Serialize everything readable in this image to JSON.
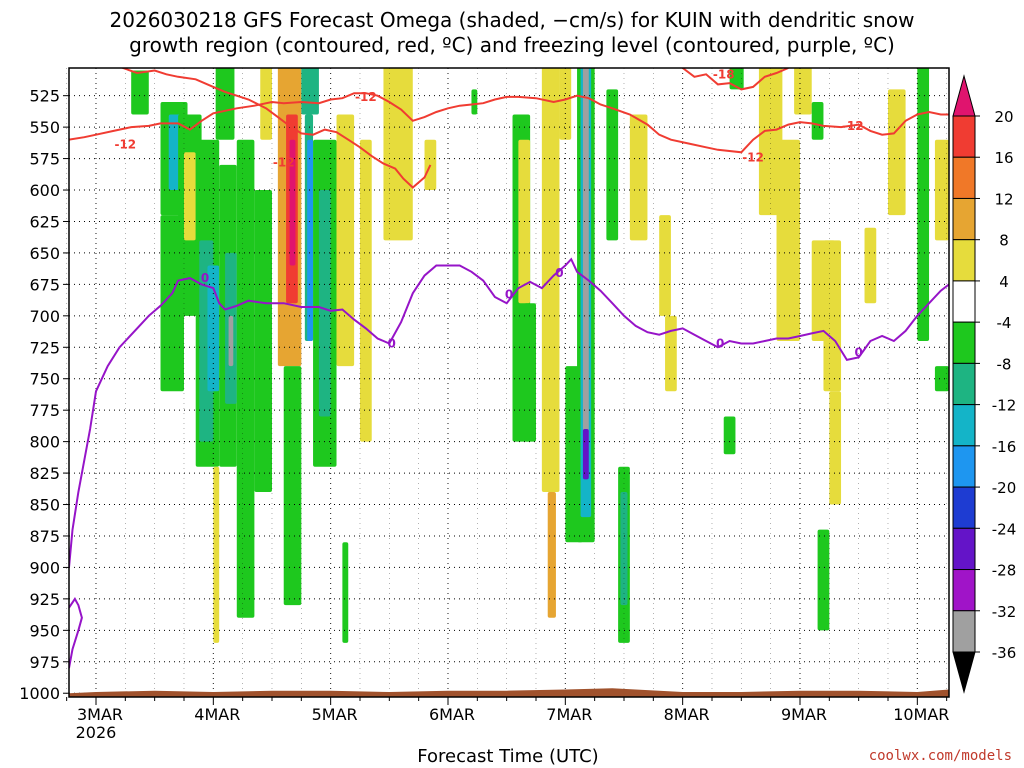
{
  "title_line1": "2026030218 GFS Forecast Omega (shaded, −cm/s) for KUIN with dendritic snow",
  "title_line2": "growth region (contoured, red, ºC) and freezing level (contoured, purple, ºC)",
  "credit": "coolwx.com/models",
  "chart_data": {
    "type": "heatmap",
    "title": "2026030218 GFS Forecast Omega (shaded, −cm/s) for KUIN with dendritic snow growth region (contoured, red, ºC) and freezing level (contoured, purple, ºC)",
    "xlabel": "Forecast Time (UTC)",
    "ylabel": "",
    "y_axis": {
      "reversed": true,
      "ylim": [
        1003,
        503
      ],
      "ticks": [
        525,
        550,
        575,
        600,
        625,
        650,
        675,
        700,
        725,
        750,
        775,
        800,
        825,
        850,
        875,
        900,
        925,
        950,
        975,
        1000
      ]
    },
    "x_axis": {
      "xlim": [
        -0.23,
        7.27
      ],
      "ticks": [
        {
          "label": "3MAR",
          "sub": "2026",
          "day": 0
        },
        {
          "label": "4MAR",
          "day": 1
        },
        {
          "label": "5MAR",
          "day": 2
        },
        {
          "label": "6MAR",
          "day": 3
        },
        {
          "label": "7MAR",
          "day": 4
        },
        {
          "label": "8MAR",
          "day": 5
        },
        {
          "label": "9MAR",
          "day": 6
        },
        {
          "label": "10MAR",
          "day": 7
        }
      ]
    },
    "grid": true,
    "colorbar": {
      "ticks": [
        "20",
        "16",
        "12",
        "8",
        "4",
        "-4",
        "-8",
        "-12",
        "-16",
        "-20",
        "-24",
        "-28",
        "-32",
        "-36"
      ],
      "colors": [
        "#e0146e",
        "#f03c32",
        "#f07828",
        "#e6a532",
        "#e6dc3c",
        "#ffffff",
        "#1ec81e",
        "#1eb482",
        "#14b4c8",
        "#1e96f0",
        "#1e3cd2",
        "#6414c8",
        "#a014c8",
        "#a0a0a0",
        "#000000"
      ]
    },
    "terrain_color": "#a0522d",
    "dendritic_color": "#f03c32",
    "freezing_color": "#9614c8",
    "dendritic_labels": [
      "-12",
      "-12",
      "-12",
      "-12",
      "-12",
      "-18"
    ],
    "freezing_labels": [
      "0",
      "0",
      "0",
      "0",
      "0",
      "0"
    ],
    "dendritic_contour_upper": [
      [
        -0.23,
        560
      ],
      [
        -0.1,
        558
      ],
      [
        0.0,
        556
      ],
      [
        0.15,
        553
      ],
      [
        0.3,
        550
      ],
      [
        0.45,
        549
      ],
      [
        0.55,
        547
      ],
      [
        0.7,
        547
      ],
      [
        0.8,
        552
      ],
      [
        0.9,
        545
      ],
      [
        1.0,
        539
      ],
      [
        1.1,
        537
      ],
      [
        1.2,
        535
      ],
      [
        1.35,
        533
      ],
      [
        1.5,
        530
      ],
      [
        1.6,
        531
      ],
      [
        1.75,
        530
      ],
      [
        1.9,
        531
      ],
      [
        2.0,
        528
      ],
      [
        2.1,
        527
      ],
      [
        2.2,
        523
      ],
      [
        2.3,
        523
      ],
      [
        2.4,
        525
      ],
      [
        2.5,
        530
      ],
      [
        2.6,
        536
      ],
      [
        2.7,
        545
      ],
      [
        2.8,
        542
      ],
      [
        2.9,
        538
      ],
      [
        3.0,
        535
      ],
      [
        3.1,
        533
      ],
      [
        3.2,
        532
      ],
      [
        3.3,
        531
      ],
      [
        3.4,
        528
      ],
      [
        3.5,
        526
      ],
      [
        3.6,
        526
      ],
      [
        3.75,
        527
      ],
      [
        3.9,
        530
      ],
      [
        4.0,
        528
      ],
      [
        4.1,
        525
      ],
      [
        4.2,
        527
      ],
      [
        4.3,
        532
      ],
      [
        4.4,
        535
      ],
      [
        4.55,
        540
      ],
      [
        4.7,
        548
      ],
      [
        4.8,
        556
      ],
      [
        4.9,
        560
      ],
      [
        5.05,
        563
      ],
      [
        5.2,
        566
      ],
      [
        5.3,
        568
      ],
      [
        5.5,
        570
      ],
      [
        5.6,
        560
      ],
      [
        5.7,
        553
      ],
      [
        5.8,
        552
      ],
      [
        5.9,
        548
      ],
      [
        6.0,
        546
      ],
      [
        6.1,
        547
      ],
      [
        6.2,
        549
      ],
      [
        6.35,
        550
      ],
      [
        6.5,
        548
      ],
      [
        6.6,
        553
      ],
      [
        6.7,
        556
      ],
      [
        6.8,
        555
      ],
      [
        6.9,
        545
      ],
      [
        7.0,
        540
      ],
      [
        7.1,
        538
      ],
      [
        7.2,
        540
      ],
      [
        7.27,
        540
      ]
    ],
    "dendritic_contour_lower": [
      [
        0.2,
        502
      ],
      [
        0.35,
        507
      ],
      [
        0.5,
        505
      ],
      [
        0.6,
        508
      ],
      [
        0.7,
        510
      ],
      [
        0.85,
        512
      ],
      [
        1.0,
        518
      ],
      [
        1.1,
        522
      ],
      [
        1.2,
        525
      ],
      [
        1.3,
        528
      ],
      [
        1.45,
        535
      ],
      [
        1.55,
        542
      ],
      [
        1.65,
        549
      ],
      [
        1.75,
        555
      ],
      [
        1.85,
        556
      ],
      [
        1.95,
        552
      ],
      [
        2.05,
        554
      ],
      [
        2.15,
        560
      ],
      [
        2.25,
        566
      ],
      [
        2.35,
        573
      ],
      [
        2.45,
        579
      ],
      [
        2.55,
        583
      ],
      [
        2.62,
        591
      ],
      [
        2.7,
        598
      ],
      [
        2.8,
        590
      ],
      [
        2.85,
        580
      ]
    ],
    "dendritic_contour_top18": [
      [
        5.0,
        503
      ],
      [
        5.1,
        510
      ],
      [
        5.2,
        508
      ],
      [
        5.3,
        516
      ],
      [
        5.4,
        515
      ],
      [
        5.5,
        520
      ],
      [
        5.6,
        518
      ],
      [
        5.7,
        510
      ],
      [
        5.8,
        507
      ],
      [
        5.9,
        503
      ]
    ],
    "freezing_contour": [
      [
        -0.23,
        900
      ],
      [
        -0.2,
        870
      ],
      [
        -0.15,
        840
      ],
      [
        -0.05,
        790
      ],
      [
        0.0,
        760
      ],
      [
        0.1,
        740
      ],
      [
        0.2,
        725
      ],
      [
        0.35,
        710
      ],
      [
        0.45,
        700
      ],
      [
        0.55,
        692
      ],
      [
        0.65,
        682
      ],
      [
        0.7,
        672
      ],
      [
        0.8,
        670
      ],
      [
        0.9,
        675
      ],
      [
        1.0,
        678
      ],
      [
        1.05,
        690
      ],
      [
        1.1,
        695
      ],
      [
        1.2,
        692
      ],
      [
        1.3,
        688
      ],
      [
        1.45,
        690
      ],
      [
        1.6,
        690
      ],
      [
        1.75,
        693
      ],
      [
        1.9,
        693
      ],
      [
        2.0,
        696
      ],
      [
        2.1,
        695
      ],
      [
        2.2,
        703
      ],
      [
        2.3,
        710
      ],
      [
        2.4,
        718
      ],
      [
        2.5,
        722
      ],
      [
        2.6,
        705
      ],
      [
        2.7,
        682
      ],
      [
        2.8,
        668
      ],
      [
        2.9,
        660
      ],
      [
        3.0,
        660
      ],
      [
        3.1,
        660
      ],
      [
        3.2,
        665
      ],
      [
        3.3,
        672
      ],
      [
        3.4,
        685
      ],
      [
        3.5,
        690
      ],
      [
        3.6,
        678
      ],
      [
        3.7,
        673
      ],
      [
        3.8,
        678
      ],
      [
        3.9,
        668
      ],
      [
        4.0,
        660
      ],
      [
        4.05,
        655
      ],
      [
        4.1,
        665
      ],
      [
        4.2,
        672
      ],
      [
        4.3,
        680
      ],
      [
        4.4,
        690
      ],
      [
        4.5,
        700
      ],
      [
        4.6,
        708
      ],
      [
        4.7,
        713
      ],
      [
        4.8,
        715
      ],
      [
        4.9,
        712
      ],
      [
        5.0,
        710
      ],
      [
        5.1,
        715
      ],
      [
        5.2,
        720
      ],
      [
        5.3,
        725
      ],
      [
        5.4,
        720
      ],
      [
        5.5,
        722
      ],
      [
        5.6,
        722
      ],
      [
        5.7,
        720
      ],
      [
        5.8,
        718
      ],
      [
        5.9,
        718
      ],
      [
        6.0,
        716
      ],
      [
        6.1,
        714
      ],
      [
        6.2,
        712
      ],
      [
        6.3,
        720
      ],
      [
        6.4,
        735
      ],
      [
        6.5,
        733
      ],
      [
        6.6,
        720
      ],
      [
        6.7,
        716
      ],
      [
        6.8,
        720
      ],
      [
        6.9,
        712
      ],
      [
        7.0,
        700
      ],
      [
        7.1,
        690
      ],
      [
        7.2,
        680
      ],
      [
        7.27,
        675
      ]
    ],
    "freezing_contour_lower": [
      [
        -0.23,
        980
      ],
      [
        -0.2,
        965
      ],
      [
        -0.15,
        950
      ],
      [
        -0.12,
        940
      ],
      [
        -0.15,
        930
      ],
      [
        -0.18,
        925
      ],
      [
        -0.23,
        932
      ]
    ],
    "omega_cells": [
      {
        "x0": 0.3,
        "x1": 0.45,
        "y0": 505,
        "y1": 540,
        "v": -8
      },
      {
        "x0": 0.55,
        "x1": 0.78,
        "y0": 530,
        "y1": 620,
        "v": -8
      },
      {
        "x0": 0.55,
        "x1": 0.75,
        "y0": 620,
        "y1": 760,
        "v": -8
      },
      {
        "x0": 0.62,
        "x1": 0.72,
        "y0": 540,
        "y1": 600,
        "v": -16
      },
      {
        "x0": 0.7,
        "x1": 0.9,
        "y0": 540,
        "y1": 700,
        "v": -8
      },
      {
        "x0": 0.75,
        "x1": 0.85,
        "y0": 570,
        "y1": 640,
        "v": 6
      },
      {
        "x0": 0.85,
        "x1": 1.05,
        "y0": 560,
        "y1": 820,
        "v": -8
      },
      {
        "x0": 0.88,
        "x1": 1.0,
        "y0": 640,
        "y1": 800,
        "v": -12
      },
      {
        "x0": 0.95,
        "x1": 1.05,
        "y0": 660,
        "y1": 760,
        "v": -16
      },
      {
        "x0": 1.02,
        "x1": 1.18,
        "y0": 500,
        "y1": 560,
        "v": -8
      },
      {
        "x0": 1.05,
        "x1": 1.2,
        "y0": 580,
        "y1": 820,
        "v": -8
      },
      {
        "x0": 1.1,
        "x1": 1.2,
        "y0": 650,
        "y1": 770,
        "v": -12
      },
      {
        "x0": 1.13,
        "x1": 1.17,
        "y0": 700,
        "y1": 740,
        "v": -36
      },
      {
        "x0": 1.0,
        "x1": 1.05,
        "y0": 820,
        "y1": 960,
        "v": 6
      },
      {
        "x0": 1.2,
        "x1": 1.35,
        "y0": 560,
        "y1": 940,
        "v": -8
      },
      {
        "x0": 1.35,
        "x1": 1.5,
        "y0": 600,
        "y1": 840,
        "v": -8
      },
      {
        "x0": 1.4,
        "x1": 1.5,
        "y0": 500,
        "y1": 560,
        "v": 6
      },
      {
        "x0": 1.55,
        "x1": 1.75,
        "y0": 500,
        "y1": 740,
        "v": 10
      },
      {
        "x0": 1.62,
        "x1": 1.72,
        "y0": 540,
        "y1": 690,
        "v": 16
      },
      {
        "x0": 1.65,
        "x1": 1.7,
        "y0": 560,
        "y1": 660,
        "v": 20
      },
      {
        "x0": 1.6,
        "x1": 1.75,
        "y0": 740,
        "y1": 930,
        "v": -8
      },
      {
        "x0": 1.75,
        "x1": 1.9,
        "y0": 500,
        "y1": 540,
        "v": -12
      },
      {
        "x0": 1.78,
        "x1": 1.85,
        "y0": 540,
        "y1": 720,
        "v": -12
      },
      {
        "x0": 1.8,
        "x1": 1.85,
        "y0": 560,
        "y1": 720,
        "v": -20
      },
      {
        "x0": 1.85,
        "x1": 2.05,
        "y0": 560,
        "y1": 820,
        "v": -8
      },
      {
        "x0": 1.9,
        "x1": 2.0,
        "y0": 600,
        "y1": 780,
        "v": -12
      },
      {
        "x0": 2.05,
        "x1": 2.2,
        "y0": 540,
        "y1": 740,
        "v": 6
      },
      {
        "x0": 2.1,
        "x1": 2.15,
        "y0": 880,
        "y1": 960,
        "v": -8
      },
      {
        "x0": 2.25,
        "x1": 2.35,
        "y0": 560,
        "y1": 800,
        "v": 6
      },
      {
        "x0": 2.45,
        "x1": 2.7,
        "y0": 500,
        "y1": 640,
        "v": 6
      },
      {
        "x0": 2.8,
        "x1": 2.9,
        "y0": 560,
        "y1": 600,
        "v": 6
      },
      {
        "x0": 3.2,
        "x1": 3.25,
        "y0": 520,
        "y1": 540,
        "v": -8
      },
      {
        "x0": 3.55,
        "x1": 3.7,
        "y0": 540,
        "y1": 800,
        "v": -8
      },
      {
        "x0": 3.6,
        "x1": 3.7,
        "y0": 560,
        "y1": 690,
        "v": 6
      },
      {
        "x0": 3.65,
        "x1": 3.75,
        "y0": 690,
        "y1": 800,
        "v": -8
      },
      {
        "x0": 3.8,
        "x1": 3.95,
        "y0": 500,
        "y1": 840,
        "v": 6
      },
      {
        "x0": 3.85,
        "x1": 3.92,
        "y0": 840,
        "y1": 940,
        "v": 10
      },
      {
        "x0": 3.95,
        "x1": 4.05,
        "y0": 500,
        "y1": 560,
        "v": 6
      },
      {
        "x0": 4.0,
        "x1": 4.15,
        "y0": 740,
        "y1": 880,
        "v": -8
      },
      {
        "x0": 4.1,
        "x1": 4.25,
        "y0": 500,
        "y1": 880,
        "v": -8
      },
      {
        "x0": 4.13,
        "x1": 4.22,
        "y0": 500,
        "y1": 860,
        "v": -16
      },
      {
        "x0": 4.15,
        "x1": 4.2,
        "y0": 500,
        "y1": 800,
        "v": -36
      },
      {
        "x0": 4.15,
        "x1": 4.2,
        "y0": 790,
        "y1": 830,
        "v": -28
      },
      {
        "x0": 4.35,
        "x1": 4.45,
        "y0": 520,
        "y1": 640,
        "v": -8
      },
      {
        "x0": 4.45,
        "x1": 4.55,
        "y0": 820,
        "y1": 960,
        "v": -8
      },
      {
        "x0": 4.47,
        "x1": 4.53,
        "y0": 840,
        "y1": 930,
        "v": -12
      },
      {
        "x0": 4.55,
        "x1": 4.7,
        "y0": 540,
        "y1": 640,
        "v": 6
      },
      {
        "x0": 4.8,
        "x1": 4.9,
        "y0": 620,
        "y1": 700,
        "v": 6
      },
      {
        "x0": 4.85,
        "x1": 4.95,
        "y0": 700,
        "y1": 760,
        "v": 6
      },
      {
        "x0": 5.4,
        "x1": 5.52,
        "y0": 500,
        "y1": 520,
        "v": -8
      },
      {
        "x0": 5.35,
        "x1": 5.45,
        "y0": 780,
        "y1": 810,
        "v": -8
      },
      {
        "x0": 5.65,
        "x1": 5.85,
        "y0": 500,
        "y1": 620,
        "v": 6
      },
      {
        "x0": 5.95,
        "x1": 6.1,
        "y0": 500,
        "y1": 540,
        "v": 6
      },
      {
        "x0": 5.8,
        "x1": 6.0,
        "y0": 560,
        "y1": 720,
        "v": 6
      },
      {
        "x0": 6.1,
        "x1": 6.2,
        "y0": 530,
        "y1": 560,
        "v": -8
      },
      {
        "x0": 6.1,
        "x1": 6.3,
        "y0": 640,
        "y1": 720,
        "v": 6
      },
      {
        "x0": 6.2,
        "x1": 6.35,
        "y0": 640,
        "y1": 760,
        "v": 6
      },
      {
        "x0": 6.25,
        "x1": 6.35,
        "y0": 760,
        "y1": 850,
        "v": 6
      },
      {
        "x0": 6.15,
        "x1": 6.25,
        "y0": 870,
        "y1": 950,
        "v": -8
      },
      {
        "x0": 6.55,
        "x1": 6.65,
        "y0": 630,
        "y1": 690,
        "v": 6
      },
      {
        "x0": 6.75,
        "x1": 6.9,
        "y0": 520,
        "y1": 620,
        "v": 6
      },
      {
        "x0": 7.0,
        "x1": 7.1,
        "y0": 500,
        "y1": 720,
        "v": -8
      },
      {
        "x0": 7.15,
        "x1": 7.27,
        "y0": 560,
        "y1": 640,
        "v": 6
      },
      {
        "x0": 7.15,
        "x1": 7.27,
        "y0": 740,
        "y1": 760,
        "v": -8
      }
    ],
    "terrain": [
      [
        -0.23,
        1000
      ],
      [
        0.0,
        999
      ],
      [
        0.5,
        998
      ],
      [
        1.0,
        999
      ],
      [
        1.5,
        998
      ],
      [
        2.0,
        998
      ],
      [
        2.5,
        999
      ],
      [
        3.0,
        998
      ],
      [
        3.5,
        998
      ],
      [
        4.0,
        997
      ],
      [
        4.4,
        996
      ],
      [
        4.6,
        997
      ],
      [
        5.0,
        999
      ],
      [
        5.5,
        999
      ],
      [
        6.0,
        998
      ],
      [
        6.5,
        998
      ],
      [
        7.0,
        999
      ],
      [
        7.27,
        997
      ]
    ]
  }
}
